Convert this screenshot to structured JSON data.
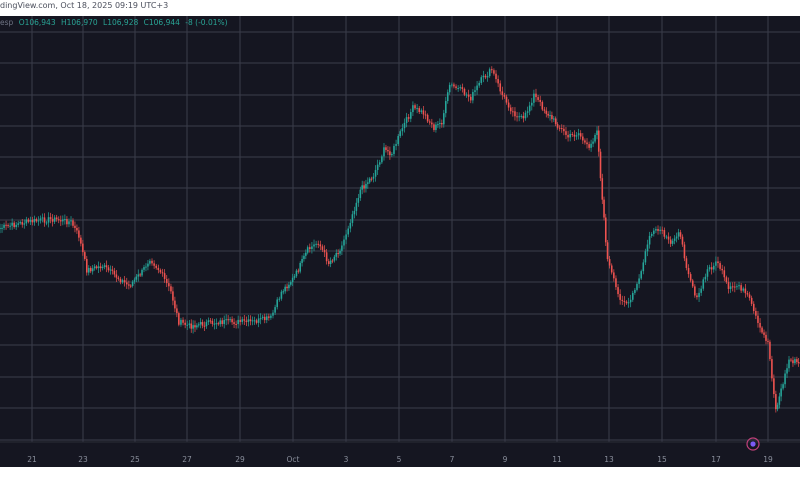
{
  "header": {
    "watermark_text": "dingView.com, Oct 18, 2025 09:19 UTC+3"
  },
  "ohlc": {
    "partial_label": "esp",
    "open": "O106,943",
    "high": "H106,970",
    "low": "L106,928",
    "close": "C106,944",
    "change": "-8 (-0.01%)"
  },
  "colors": {
    "background": "#151621",
    "grid": "#3a3d4a",
    "up": "#26a69a",
    "down": "#ef5350",
    "text": "#8a8f9c"
  },
  "chart_data": {
    "type": "line",
    "title": "",
    "xlabel": "",
    "ylabel": "",
    "x_tick_labels": [
      "21",
      "23",
      "25",
      "27",
      "29",
      "Oct",
      "3",
      "5",
      "7",
      "9",
      "11",
      "13",
      "15",
      "17",
      "19"
    ],
    "x_range": [
      19.3,
      49.8
    ],
    "grid": true,
    "series": [
      {
        "values": [
          [
            19.3,
            228
          ],
          [
            20.3,
            222
          ],
          [
            21.3,
            219
          ],
          [
            22.0,
            222
          ],
          [
            22.3,
            236
          ],
          [
            22.6,
            270
          ],
          [
            23.2,
            266
          ],
          [
            23.8,
            278
          ],
          [
            24.2,
            286
          ],
          [
            24.7,
            272
          ],
          [
            25.0,
            258
          ],
          [
            25.4,
            272
          ],
          [
            25.8,
            292
          ],
          [
            26.1,
            322
          ],
          [
            26.5,
            326
          ],
          [
            27.0,
            324
          ],
          [
            27.6,
            322
          ],
          [
            28.2,
            322
          ],
          [
            28.9,
            322
          ],
          [
            29.6,
            318
          ],
          [
            30.0,
            292
          ],
          [
            30.5,
            277
          ],
          [
            31.0,
            250
          ],
          [
            31.4,
            242
          ],
          [
            31.8,
            263
          ],
          [
            32.3,
            246
          ],
          [
            32.7,
            214
          ],
          [
            33.0,
            190
          ],
          [
            33.5,
            175
          ],
          [
            33.9,
            150
          ],
          [
            34.2,
            153
          ],
          [
            34.6,
            128
          ],
          [
            35.0,
            108
          ],
          [
            35.4,
            113
          ],
          [
            35.8,
            128
          ],
          [
            36.1,
            122
          ],
          [
            36.4,
            85
          ],
          [
            36.8,
            90
          ],
          [
            37.2,
            98
          ],
          [
            37.6,
            80
          ],
          [
            38.0,
            70
          ],
          [
            38.4,
            95
          ],
          [
            38.8,
            112
          ],
          [
            39.2,
            120
          ],
          [
            39.6,
            95
          ],
          [
            40.0,
            110
          ],
          [
            40.5,
            125
          ],
          [
            40.9,
            137
          ],
          [
            41.3,
            133
          ],
          [
            41.7,
            150
          ],
          [
            42.0,
            128
          ],
          [
            42.2,
            200
          ],
          [
            42.4,
            260
          ],
          [
            42.8,
            295
          ],
          [
            43.2,
            305
          ],
          [
            43.6,
            280
          ],
          [
            44.0,
            235
          ],
          [
            44.4,
            230
          ],
          [
            44.8,
            245
          ],
          [
            45.1,
            230
          ],
          [
            45.4,
            265
          ],
          [
            45.8,
            300
          ],
          [
            46.2,
            270
          ],
          [
            46.6,
            262
          ],
          [
            47.0,
            290
          ],
          [
            47.4,
            285
          ],
          [
            47.8,
            300
          ],
          [
            48.2,
            330
          ],
          [
            48.5,
            342
          ],
          [
            48.8,
            410
          ],
          [
            49.0,
            390
          ],
          [
            49.3,
            360
          ],
          [
            49.6,
            362
          ],
          [
            49.8,
            366
          ]
        ]
      }
    ]
  }
}
